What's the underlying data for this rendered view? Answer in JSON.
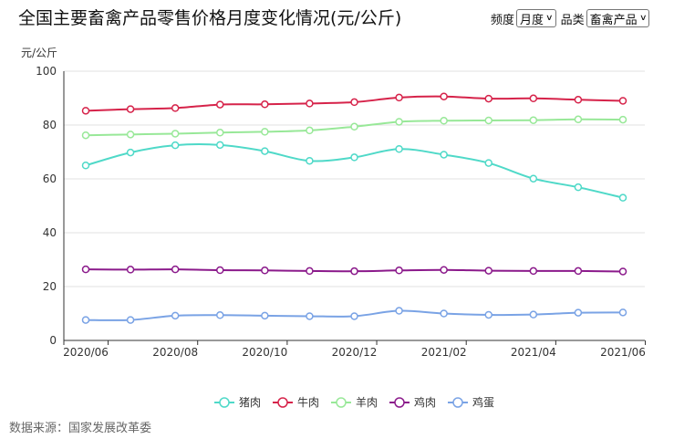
{
  "header": {
    "title": "全国主要畜禽产品零售价格月度变化情况(元/公斤)",
    "frequency_label": "频度",
    "frequency_value": "月度",
    "category_label": "品类",
    "category_value": "畜禽产品"
  },
  "source": "数据来源：国家发展改革委",
  "chart_data": {
    "type": "line",
    "ylabel": "元/公斤",
    "ylim": [
      0,
      100
    ],
    "yticks": [
      0,
      20,
      40,
      60,
      80,
      100
    ],
    "grid": true,
    "legend_position": "bottom-center",
    "x": [
      "2020/06",
      "2020/07",
      "2020/08",
      "2020/09",
      "2020/10",
      "2020/11",
      "2020/12",
      "2021/01",
      "2021/02",
      "2021/03",
      "2021/04",
      "2021/05",
      "2021/06"
    ],
    "xticks": [
      "2020/06",
      "2020/08",
      "2020/10",
      "2020/12",
      "2021/02",
      "2021/04",
      "2021/06"
    ],
    "series": [
      {
        "name": "猪肉",
        "color": "#4fd9c8",
        "values": [
          65.0,
          69.8,
          72.5,
          72.6,
          70.3,
          66.7,
          68.0,
          71.1,
          69.0,
          65.9,
          60.1,
          56.9,
          53.0
        ]
      },
      {
        "name": "牛肉",
        "color": "#d6234a",
        "values": [
          85.3,
          85.9,
          86.3,
          87.6,
          87.7,
          88.0,
          88.5,
          90.2,
          90.6,
          89.8,
          89.9,
          89.4,
          89.0
        ]
      },
      {
        "name": "羊肉",
        "color": "#98e898",
        "values": [
          76.2,
          76.5,
          76.8,
          77.2,
          77.5,
          78.0,
          79.4,
          81.2,
          81.6,
          81.7,
          81.8,
          82.1,
          82.0
        ]
      },
      {
        "name": "鸡肉",
        "color": "#8b1a8b",
        "values": [
          26.4,
          26.3,
          26.4,
          26.1,
          26.0,
          25.8,
          25.7,
          26.0,
          26.2,
          25.9,
          25.8,
          25.8,
          25.6
        ]
      },
      {
        "name": "鸡蛋",
        "color": "#7aa3e5",
        "values": [
          7.6,
          7.6,
          9.2,
          9.4,
          9.2,
          9.0,
          9.0,
          11.0,
          10.0,
          9.5,
          9.6,
          10.3,
          10.4
        ]
      }
    ]
  }
}
